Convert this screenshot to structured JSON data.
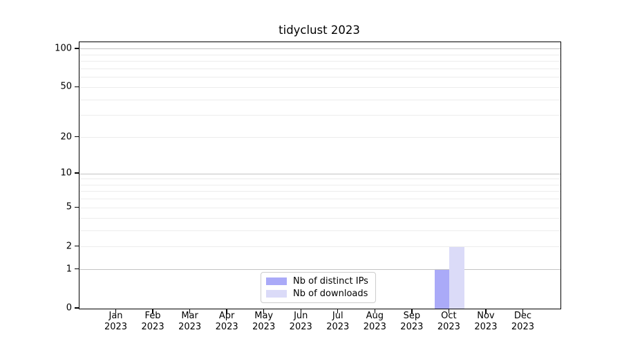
{
  "chart_data": {
    "type": "bar",
    "title": "tidyclust 2023",
    "x": {
      "categories": [
        "Jan",
        "Feb",
        "Mar",
        "Apr",
        "May",
        "Jun",
        "Jul",
        "Aug",
        "Sep",
        "Oct",
        "Nov",
        "Dec"
      ],
      "year_label": "2023"
    },
    "series": [
      {
        "name": "Nb of distinct IPs",
        "color": "#aaaaf8",
        "values": [
          0,
          0,
          0,
          0,
          0,
          0,
          0,
          0,
          0,
          1,
          0,
          0
        ]
      },
      {
        "name": "Nb of downloads",
        "color": "#dbdbf8",
        "values": [
          0,
          0,
          0,
          0,
          0,
          0,
          0,
          0,
          0,
          2,
          0,
          0
        ]
      }
    ],
    "y_axis": {
      "scale": "log1p",
      "tick_values": [
        0,
        1,
        2,
        5,
        10,
        20,
        50,
        100
      ],
      "major_gridlines": [
        1,
        10,
        100
      ],
      "minor_gridlines": [
        2,
        3,
        4,
        5,
        6,
        7,
        8,
        9,
        20,
        30,
        40,
        50,
        60,
        70,
        80,
        90
      ],
      "ylim": [
        0,
        113
      ]
    },
    "legend": {
      "position": "inside-bottom-center"
    },
    "grid": true
  },
  "colors": {
    "background": "#ffffff",
    "spine": "#000000",
    "major_grid": "#c3c3c3",
    "minor_grid": "#ececec",
    "text": "#000000",
    "legend_border": "#cccccc"
  }
}
